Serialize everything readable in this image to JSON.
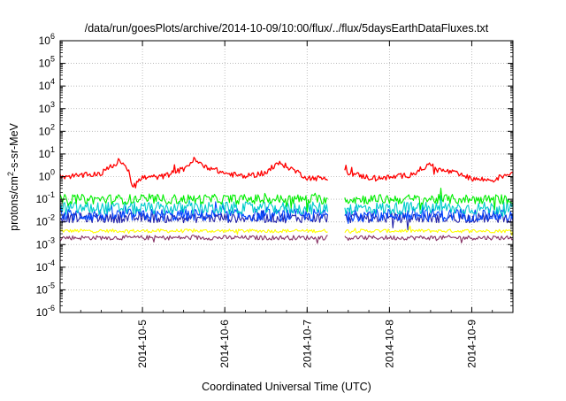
{
  "chart_data": {
    "type": "line",
    "title": "/data/run/goesPlots/archive/2014-10-09/10:00/flux/../flux/5daysEarthDataFluxes.txt",
    "xlabel": "Coordinated Universal Time (UTC)",
    "ylabel": {
      "pre": "protons/cm",
      "sup": "2",
      "post": "-s-sr-MeV"
    },
    "yscale": "log",
    "ylim": [
      1e-06,
      1000000.0
    ],
    "xlim": [
      "2014-10-04 00:00",
      "2014-10-09 12:00"
    ],
    "grid": true,
    "yticks": [
      {
        "value": 1e-06,
        "base": "10",
        "exp": "-6"
      },
      {
        "value": 1e-05,
        "base": "10",
        "exp": "-5"
      },
      {
        "value": 0.0001,
        "base": "10",
        "exp": "-4"
      },
      {
        "value": 0.001,
        "base": "10",
        "exp": "-3"
      },
      {
        "value": 0.01,
        "base": "10",
        "exp": "-2"
      },
      {
        "value": 0.1,
        "base": "10",
        "exp": "-1"
      },
      {
        "value": 1.0,
        "base": "10",
        "exp": "0"
      },
      {
        "value": 10.0,
        "base": "10",
        "exp": "1"
      },
      {
        "value": 100.0,
        "base": "10",
        "exp": "2"
      },
      {
        "value": 1000.0,
        "base": "10",
        "exp": "3"
      },
      {
        "value": 10000.0,
        "base": "10",
        "exp": "4"
      },
      {
        "value": 100000.0,
        "base": "10",
        "exp": "5"
      },
      {
        "value": 1000000.0,
        "base": "10",
        "exp": "6"
      }
    ],
    "xticks": [
      {
        "x": "2014-10-05 00:00",
        "label": "2014-10-5"
      },
      {
        "x": "2014-10-06 00:00",
        "label": "2014-10-6"
      },
      {
        "x": "2014-10-07 00:00",
        "label": "2014-10-7"
      },
      {
        "x": "2014-10-08 00:00",
        "label": "2014-10-8"
      },
      {
        "x": "2014-10-09 00:00",
        "label": "2014-10-9"
      }
    ],
    "data_gap": [
      "2014-10-07 06:00",
      "2014-10-07 11:00"
    ],
    "series": [
      {
        "color": "#ff0000",
        "x": [
          "2014-10-04 00:00",
          "2014-10-04 06:00",
          "2014-10-04 12:00",
          "2014-10-04 15:00",
          "2014-10-04 18:00",
          "2014-10-04 20:00",
          "2014-10-04 21:00",
          "2014-10-04 22:00",
          "2014-10-05 00:00",
          "2014-10-05 06:00",
          "2014-10-05 12:00",
          "2014-10-05 15:00",
          "2014-10-05 18:00",
          "2014-10-06 00:00",
          "2014-10-06 06:00",
          "2014-10-06 12:00",
          "2014-10-06 16:00",
          "2014-10-06 20:00",
          "2014-10-07 00:00",
          "2014-10-07 06:00",
          "2014-10-07 11:00",
          "2014-10-07 18:00",
          "2014-10-08 00:00",
          "2014-10-08 06:00",
          "2014-10-08 12:00",
          "2014-10-08 14:00",
          "2014-10-08 18:00",
          "2014-10-09 00:00",
          "2014-10-09 06:00",
          "2014-10-09 12:00"
        ],
        "values": [
          1.0,
          1.1,
          1.4,
          3.0,
          4.5,
          2.0,
          0.4,
          0.5,
          0.9,
          1.0,
          2.2,
          5.5,
          3.0,
          1.4,
          1.0,
          1.5,
          4.0,
          2.0,
          0.9,
          0.8,
          1.6,
          0.9,
          0.9,
          1.2,
          3.5,
          2.0,
          1.6,
          0.8,
          0.7,
          1.6
        ]
      },
      {
        "color": "#00ee00",
        "x": [
          "2014-10-04 00:00",
          "2014-10-09 12:00"
        ],
        "values": [
          0.1,
          0.1
        ]
      },
      {
        "color": "#00cccc",
        "x": [
          "2014-10-04 00:00",
          "2014-10-09 12:00"
        ],
        "values": [
          0.04,
          0.04
        ]
      },
      {
        "color": "#0044ff",
        "x": [
          "2014-10-04 00:00",
          "2014-10-09 12:00"
        ],
        "values": [
          0.02,
          0.02
        ]
      },
      {
        "color": "#2222aa",
        "x": [
          "2014-10-04 00:00",
          "2014-10-09 12:00"
        ],
        "values": [
          0.015,
          0.015
        ]
      },
      {
        "color": "#ffff00",
        "x": [
          "2014-10-04 00:00",
          "2014-10-09 12:00"
        ],
        "values": [
          0.004,
          0.004
        ]
      },
      {
        "color": "#883366",
        "x": [
          "2014-10-04 00:00",
          "2014-10-09 12:00"
        ],
        "values": [
          0.002,
          0.002
        ]
      }
    ]
  }
}
